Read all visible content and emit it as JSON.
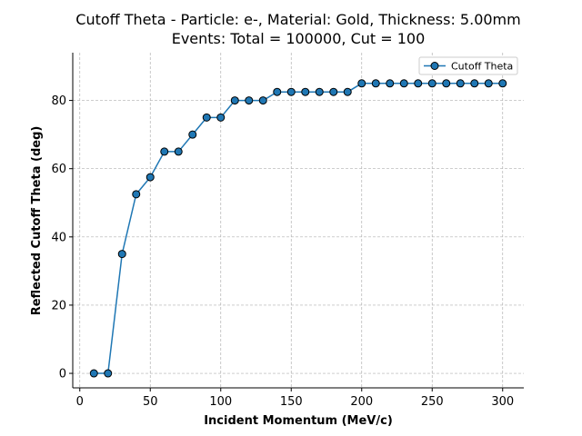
{
  "chart_data": {
    "type": "line",
    "title_line1": "Cutoff Theta - Particle: e-, Material: Gold, Thickness: 5.00mm",
    "title_line2": "Events: Total = 100000, Cut = 100",
    "xlabel": "Incident Momentum (MeV/c)",
    "ylabel": "Reflected Cutoff Theta (deg)",
    "xlim": [
      -5,
      315
    ],
    "ylim": [
      -4.25,
      94
    ],
    "xticks": [
      0,
      50,
      100,
      150,
      200,
      250,
      300
    ],
    "yticks": [
      0,
      20,
      40,
      60,
      80
    ],
    "grid": true,
    "legend_position": "top-right",
    "series": [
      {
        "name": "Cutoff Theta",
        "color": "#1f77b4",
        "marker": "circle",
        "x": [
          10,
          20,
          30,
          40,
          50,
          60,
          70,
          80,
          90,
          100,
          110,
          120,
          130,
          140,
          150,
          160,
          170,
          180,
          190,
          200,
          210,
          220,
          230,
          240,
          250,
          260,
          270,
          280,
          290,
          300
        ],
        "y": [
          0,
          0,
          35,
          52.5,
          57.5,
          65,
          65,
          70,
          75,
          75,
          80,
          80,
          80,
          82.5,
          82.5,
          82.5,
          82.5,
          82.5,
          82.5,
          85,
          85,
          85,
          85,
          85,
          85,
          85,
          85,
          85,
          85,
          85
        ]
      }
    ]
  }
}
